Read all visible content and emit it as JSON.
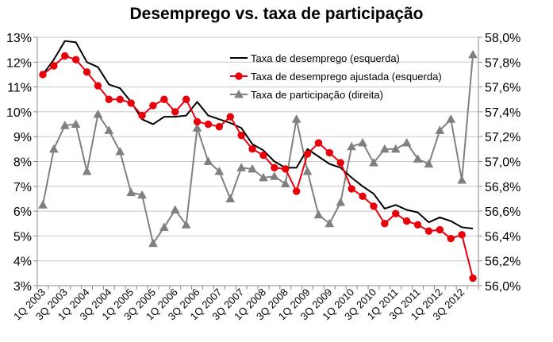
{
  "chart_data": {
    "type": "line",
    "title": "Desemprego vs. taxa de participação",
    "x": [
      "1Q 2003",
      "2Q 2003",
      "3Q 2003",
      "4Q 2003",
      "1Q 2004",
      "2Q 2004",
      "3Q 2004",
      "4Q 2004",
      "1Q 2005",
      "2Q 2005",
      "3Q 2005",
      "4Q 2005",
      "1Q 2006",
      "2Q 2006",
      "3Q 2006",
      "4Q 2006",
      "1Q 2007",
      "2Q 2007",
      "3Q 2007",
      "4Q 2007",
      "1Q 2008",
      "2Q 2008",
      "3Q 2008",
      "4Q 2008",
      "1Q 2009",
      "2Q 2009",
      "3Q 2009",
      "4Q 2009",
      "1Q 2010",
      "2Q 2010",
      "3Q 2010",
      "4Q 2010",
      "1Q 2011",
      "2Q 2011",
      "3Q 2011",
      "4Q 2011",
      "1Q 2012",
      "2Q 2012",
      "3Q 2012",
      "4Q 2012"
    ],
    "x_tick_labels": [
      "1Q 2003",
      "3Q 2003",
      "1Q 2004",
      "3Q 2004",
      "1Q 2005",
      "3Q 2005",
      "1Q 2006",
      "3Q 2006",
      "1Q 2007",
      "3Q 2007",
      "1Q 2008",
      "3Q 2008",
      "1Q 2009",
      "3Q 2009",
      "1Q 2010",
      "3Q 2010",
      "1Q 2011",
      "3Q 2011",
      "1Q 2012",
      "3Q 2012"
    ],
    "y_left": {
      "range": [
        3,
        13
      ],
      "ticks": [
        "3%",
        "4%",
        "5%",
        "6%",
        "7%",
        "8%",
        "9%",
        "10%",
        "11%",
        "12%",
        "13%"
      ]
    },
    "y_right": {
      "range": [
        56.0,
        58.0
      ],
      "ticks": [
        "56,0%",
        "56,2%",
        "56,4%",
        "56,6%",
        "56,8%",
        "57,0%",
        "57,2%",
        "57,4%",
        "57,6%",
        "57,8%",
        "58,0%"
      ]
    },
    "grid": "horizontal",
    "legend_position": "top-right",
    "series": [
      {
        "name": "Taxa de desemprego (esquerda)",
        "axis": "left",
        "color": "#000000",
        "marker": "none",
        "x_start": 0,
        "values": [
          11.5,
          12.1,
          12.85,
          12.8,
          12.0,
          11.8,
          11.1,
          10.95,
          10.4,
          9.7,
          9.5,
          9.8,
          9.8,
          9.85,
          10.4,
          9.85,
          9.7,
          9.55,
          9.35,
          8.7,
          8.45,
          8.0,
          7.75,
          7.75,
          8.5,
          8.2,
          7.9,
          7.75,
          7.35,
          7.0,
          6.7,
          6.1,
          6.25,
          6.05,
          5.95,
          5.55,
          5.75,
          5.6,
          5.35,
          5.3
        ]
      },
      {
        "name": "Taxa de desemprego ajustada (esquerda)",
        "axis": "left",
        "color": "#e8000a",
        "marker": "circle",
        "x_start": 0,
        "values": [
          11.5,
          11.85,
          12.25,
          12.1,
          11.6,
          11.05,
          10.5,
          10.5,
          10.35,
          9.85,
          10.25,
          10.5,
          10.0,
          10.5,
          9.6,
          9.5,
          9.4,
          9.8,
          9.05,
          8.5,
          8.25,
          7.75,
          7.7,
          6.8,
          8.3,
          8.75,
          8.35,
          7.95,
          6.9,
          6.6,
          6.2,
          5.5,
          5.9,
          5.6,
          5.45,
          5.2,
          5.25,
          4.9,
          5.05,
          3.3
        ]
      },
      {
        "name": "Taxa de participação (direita)",
        "axis": "right",
        "color": "#808080",
        "marker": "triangle",
        "x_start": 0,
        "values": [
          56.65,
          57.1,
          57.29,
          57.3,
          56.92,
          57.38,
          57.25,
          57.08,
          56.75,
          56.73,
          56.34,
          56.47,
          56.61,
          56.49,
          57.27,
          57.0,
          56.92,
          56.7,
          56.95,
          56.94,
          56.87,
          56.88,
          56.82,
          57.34,
          56.92,
          56.57,
          56.5,
          56.67,
          57.12,
          57.15,
          56.99,
          57.1,
          57.1,
          57.15,
          57.02,
          56.98,
          57.25,
          57.34,
          56.85,
          57.86
        ]
      }
    ]
  }
}
